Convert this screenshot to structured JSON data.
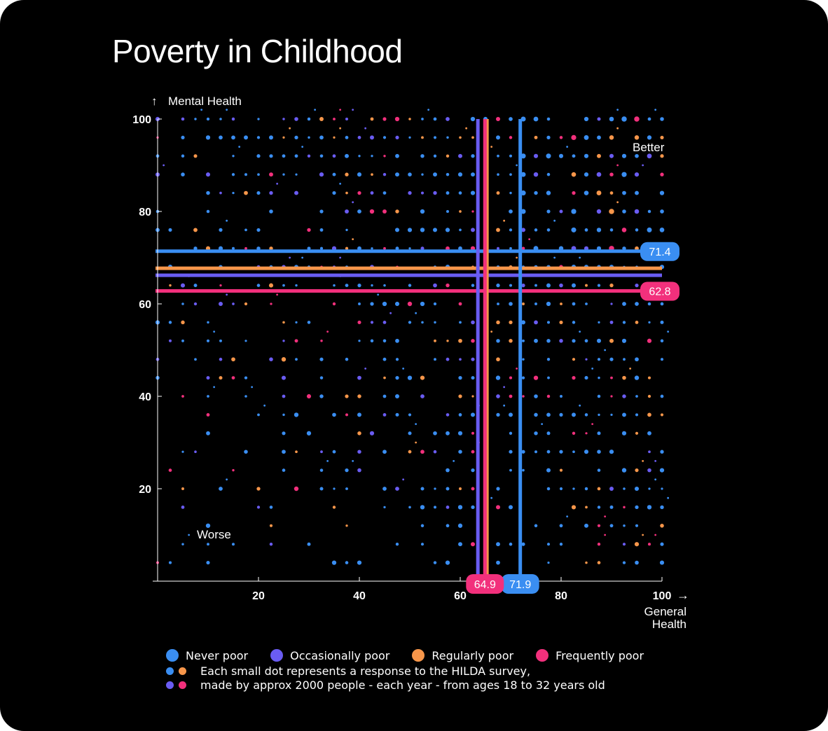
{
  "title": "Poverty in Childhood",
  "chart_data": {
    "type": "scatter",
    "title": "Poverty in Childhood",
    "xlabel": "General Health",
    "ylabel": "Mental Health",
    "xlim": [
      0,
      100
    ],
    "ylim": [
      0,
      100
    ],
    "xticks": [
      "20",
      "40",
      "60",
      "80",
      "100"
    ],
    "yticks": [
      "20",
      "40",
      "60",
      "80",
      "100"
    ],
    "grid": false,
    "annotations": {
      "better": "Better",
      "worse": "Worse"
    },
    "series": [
      {
        "name": "Never poor",
        "color": "#3a8ef2",
        "mean_x": 71.9,
        "mean_y": 71.4,
        "mean_x_label": "71.9",
        "mean_y_label": "71.4"
      },
      {
        "name": "Occasionally poor",
        "color": "#6a5cf2",
        "mean_x": 63.5,
        "mean_y": 66.2
      },
      {
        "name": "Regularly poor",
        "color": "#f7964a",
        "mean_x": 65.3,
        "mean_y": 67.7
      },
      {
        "name": "Frequently poor",
        "color": "#f2307c",
        "mean_x": 64.9,
        "mean_y": 62.8,
        "mean_x_label": "64.9",
        "mean_y_label": "62.8"
      }
    ],
    "legend_position": "bottom-left",
    "note_line1": "Each small dot represents a response to the HILDA survey,",
    "note_line2": "made by approx 2000 people - each year - from ages 18 to 32 years old"
  }
}
